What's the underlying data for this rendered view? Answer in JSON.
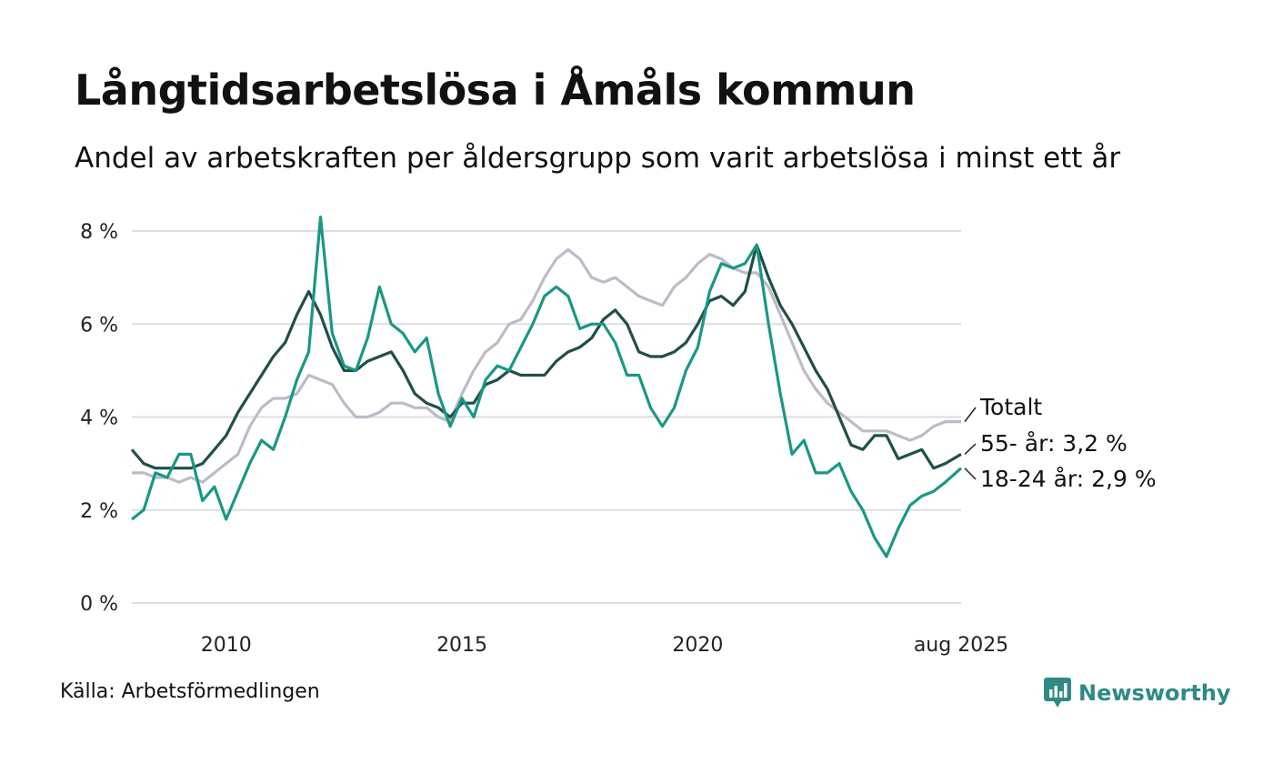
{
  "title": "Långtidsarbetslösa i Åmåls kommun",
  "subtitle": "Andel av arbetskraften per åldersgrupp som varit arbetslösa i minst ett år",
  "source": "Källa: Arbetsförmedlingen",
  "brand": {
    "name": "Newsworthy",
    "color": "#2d8a84",
    "icon": "newsworthy-logo-icon"
  },
  "chart_data": {
    "type": "line",
    "x_range": [
      "2008-01",
      "2025-08"
    ],
    "ylim": [
      0,
      8
    ],
    "y_ticks": [
      {
        "value": 0,
        "label": "0 %"
      },
      {
        "value": 2,
        "label": "2 %"
      },
      {
        "value": 4,
        "label": "4 %"
      },
      {
        "value": 6,
        "label": "6 %"
      },
      {
        "value": 8,
        "label": "8 %"
      }
    ],
    "x_ticks": [
      {
        "value": "2010-01",
        "label": "2010"
      },
      {
        "value": "2015-01",
        "label": "2015"
      },
      {
        "value": "2020-01",
        "label": "2020"
      },
      {
        "value": "2025-08",
        "label": "aug 2025"
      }
    ],
    "grid": "horizontal",
    "series": [
      {
        "name": "Totalt",
        "end_label": "Totalt",
        "color": "#bdbbc8",
        "points": [
          [
            "2008-01",
            2.8
          ],
          [
            "2008-04",
            2.8
          ],
          [
            "2008-07",
            2.7
          ],
          [
            "2008-10",
            2.7
          ],
          [
            "2009-01",
            2.6
          ],
          [
            "2009-04",
            2.7
          ],
          [
            "2009-07",
            2.6
          ],
          [
            "2009-10",
            2.8
          ],
          [
            "2010-01",
            3.0
          ],
          [
            "2010-04",
            3.2
          ],
          [
            "2010-07",
            3.8
          ],
          [
            "2010-10",
            4.2
          ],
          [
            "2011-01",
            4.4
          ],
          [
            "2011-04",
            4.4
          ],
          [
            "2011-07",
            4.5
          ],
          [
            "2011-10",
            4.9
          ],
          [
            "2012-01",
            4.8
          ],
          [
            "2012-04",
            4.7
          ],
          [
            "2012-07",
            4.3
          ],
          [
            "2012-10",
            4.0
          ],
          [
            "2013-01",
            4.0
          ],
          [
            "2013-04",
            4.1
          ],
          [
            "2013-07",
            4.3
          ],
          [
            "2013-10",
            4.3
          ],
          [
            "2014-01",
            4.2
          ],
          [
            "2014-04",
            4.2
          ],
          [
            "2014-07",
            4.0
          ],
          [
            "2014-10",
            3.9
          ],
          [
            "2015-01",
            4.5
          ],
          [
            "2015-04",
            5.0
          ],
          [
            "2015-07",
            5.4
          ],
          [
            "2015-10",
            5.6
          ],
          [
            "2016-01",
            6.0
          ],
          [
            "2016-04",
            6.1
          ],
          [
            "2016-07",
            6.5
          ],
          [
            "2016-10",
            7.0
          ],
          [
            "2017-01",
            7.4
          ],
          [
            "2017-04",
            7.6
          ],
          [
            "2017-07",
            7.4
          ],
          [
            "2017-10",
            7.0
          ],
          [
            "2018-01",
            6.9
          ],
          [
            "2018-04",
            7.0
          ],
          [
            "2018-07",
            6.8
          ],
          [
            "2018-10",
            6.6
          ],
          [
            "2019-01",
            6.5
          ],
          [
            "2019-04",
            6.4
          ],
          [
            "2019-07",
            6.8
          ],
          [
            "2019-10",
            7.0
          ],
          [
            "2020-01",
            7.3
          ],
          [
            "2020-04",
            7.5
          ],
          [
            "2020-07",
            7.4
          ],
          [
            "2020-10",
            7.2
          ],
          [
            "2021-01",
            7.1
          ],
          [
            "2021-04",
            7.1
          ],
          [
            "2021-07",
            6.8
          ],
          [
            "2021-10",
            6.2
          ],
          [
            "2022-01",
            5.6
          ],
          [
            "2022-04",
            5.0
          ],
          [
            "2022-07",
            4.6
          ],
          [
            "2022-10",
            4.3
          ],
          [
            "2023-01",
            4.1
          ],
          [
            "2023-04",
            3.9
          ],
          [
            "2023-07",
            3.7
          ],
          [
            "2023-10",
            3.7
          ],
          [
            "2024-01",
            3.7
          ],
          [
            "2024-04",
            3.6
          ],
          [
            "2024-07",
            3.5
          ],
          [
            "2024-10",
            3.6
          ],
          [
            "2025-01",
            3.8
          ],
          [
            "2025-04",
            3.9
          ],
          [
            "2025-08",
            3.9
          ]
        ]
      },
      {
        "name": "55- år",
        "end_label": "55- år: 3,2 %",
        "color": "#1f4f49",
        "points": [
          [
            "2008-01",
            3.3
          ],
          [
            "2008-04",
            3.0
          ],
          [
            "2008-07",
            2.9
          ],
          [
            "2008-10",
            2.9
          ],
          [
            "2009-01",
            2.9
          ],
          [
            "2009-04",
            2.9
          ],
          [
            "2009-07",
            3.0
          ],
          [
            "2009-10",
            3.3
          ],
          [
            "2010-01",
            3.6
          ],
          [
            "2010-04",
            4.1
          ],
          [
            "2010-07",
            4.5
          ],
          [
            "2010-10",
            4.9
          ],
          [
            "2011-01",
            5.3
          ],
          [
            "2011-04",
            5.6
          ],
          [
            "2011-07",
            6.2
          ],
          [
            "2011-10",
            6.7
          ],
          [
            "2012-01",
            6.2
          ],
          [
            "2012-04",
            5.5
          ],
          [
            "2012-07",
            5.0
          ],
          [
            "2012-10",
            5.0
          ],
          [
            "2013-01",
            5.2
          ],
          [
            "2013-04",
            5.3
          ],
          [
            "2013-07",
            5.4
          ],
          [
            "2013-10",
            5.0
          ],
          [
            "2014-01",
            4.5
          ],
          [
            "2014-04",
            4.3
          ],
          [
            "2014-07",
            4.2
          ],
          [
            "2014-10",
            4.0
          ],
          [
            "2015-01",
            4.3
          ],
          [
            "2015-04",
            4.3
          ],
          [
            "2015-07",
            4.7
          ],
          [
            "2015-10",
            4.8
          ],
          [
            "2016-01",
            5.0
          ],
          [
            "2016-04",
            4.9
          ],
          [
            "2016-07",
            4.9
          ],
          [
            "2016-10",
            4.9
          ],
          [
            "2017-01",
            5.2
          ],
          [
            "2017-04",
            5.4
          ],
          [
            "2017-07",
            5.5
          ],
          [
            "2017-10",
            5.7
          ],
          [
            "2018-01",
            6.1
          ],
          [
            "2018-04",
            6.3
          ],
          [
            "2018-07",
            6.0
          ],
          [
            "2018-10",
            5.4
          ],
          [
            "2019-01",
            5.3
          ],
          [
            "2019-04",
            5.3
          ],
          [
            "2019-07",
            5.4
          ],
          [
            "2019-10",
            5.6
          ],
          [
            "2020-01",
            6.0
          ],
          [
            "2020-04",
            6.5
          ],
          [
            "2020-07",
            6.6
          ],
          [
            "2020-10",
            6.4
          ],
          [
            "2021-01",
            6.7
          ],
          [
            "2021-04",
            7.7
          ],
          [
            "2021-07",
            7.0
          ],
          [
            "2021-10",
            6.4
          ],
          [
            "2022-01",
            6.0
          ],
          [
            "2022-04",
            5.5
          ],
          [
            "2022-07",
            5.0
          ],
          [
            "2022-10",
            4.6
          ],
          [
            "2023-01",
            4.0
          ],
          [
            "2023-04",
            3.4
          ],
          [
            "2023-07",
            3.3
          ],
          [
            "2023-10",
            3.6
          ],
          [
            "2024-01",
            3.6
          ],
          [
            "2024-04",
            3.1
          ],
          [
            "2024-07",
            3.2
          ],
          [
            "2024-10",
            3.3
          ],
          [
            "2025-01",
            2.9
          ],
          [
            "2025-04",
            3.0
          ],
          [
            "2025-08",
            3.2
          ]
        ]
      },
      {
        "name": "18-24 år",
        "end_label": "18-24 år: 2,9 %",
        "color": "#1a9784",
        "points": [
          [
            "2008-01",
            1.8
          ],
          [
            "2008-04",
            2.0
          ],
          [
            "2008-07",
            2.8
          ],
          [
            "2008-10",
            2.7
          ],
          [
            "2009-01",
            3.2
          ],
          [
            "2009-04",
            3.2
          ],
          [
            "2009-07",
            2.2
          ],
          [
            "2009-10",
            2.5
          ],
          [
            "2010-01",
            1.8
          ],
          [
            "2010-04",
            2.4
          ],
          [
            "2010-07",
            3.0
          ],
          [
            "2010-10",
            3.5
          ],
          [
            "2011-01",
            3.3
          ],
          [
            "2011-04",
            4.0
          ],
          [
            "2011-07",
            4.8
          ],
          [
            "2011-10",
            5.4
          ],
          [
            "2012-01",
            8.3
          ],
          [
            "2012-04",
            5.8
          ],
          [
            "2012-07",
            5.1
          ],
          [
            "2012-10",
            5.0
          ],
          [
            "2013-01",
            5.7
          ],
          [
            "2013-04",
            6.8
          ],
          [
            "2013-07",
            6.0
          ],
          [
            "2013-10",
            5.8
          ],
          [
            "2014-01",
            5.4
          ],
          [
            "2014-04",
            5.7
          ],
          [
            "2014-07",
            4.5
          ],
          [
            "2014-10",
            3.8
          ],
          [
            "2015-01",
            4.4
          ],
          [
            "2015-04",
            4.0
          ],
          [
            "2015-07",
            4.8
          ],
          [
            "2015-10",
            5.1
          ],
          [
            "2016-01",
            5.0
          ],
          [
            "2016-04",
            5.5
          ],
          [
            "2016-07",
            6.0
          ],
          [
            "2016-10",
            6.6
          ],
          [
            "2017-01",
            6.8
          ],
          [
            "2017-04",
            6.6
          ],
          [
            "2017-07",
            5.9
          ],
          [
            "2017-10",
            6.0
          ],
          [
            "2018-01",
            6.0
          ],
          [
            "2018-04",
            5.6
          ],
          [
            "2018-07",
            4.9
          ],
          [
            "2018-10",
            4.9
          ],
          [
            "2019-01",
            4.2
          ],
          [
            "2019-04",
            3.8
          ],
          [
            "2019-07",
            4.2
          ],
          [
            "2019-10",
            5.0
          ],
          [
            "2020-01",
            5.5
          ],
          [
            "2020-04",
            6.7
          ],
          [
            "2020-07",
            7.3
          ],
          [
            "2020-10",
            7.2
          ],
          [
            "2021-01",
            7.3
          ],
          [
            "2021-04",
            7.7
          ],
          [
            "2021-07",
            6.0
          ],
          [
            "2021-10",
            4.5
          ],
          [
            "2022-01",
            3.2
          ],
          [
            "2022-04",
            3.5
          ],
          [
            "2022-07",
            2.8
          ],
          [
            "2022-10",
            2.8
          ],
          [
            "2023-01",
            3.0
          ],
          [
            "2023-04",
            2.4
          ],
          [
            "2023-07",
            2.0
          ],
          [
            "2023-10",
            1.4
          ],
          [
            "2024-01",
            1.0
          ],
          [
            "2024-04",
            1.6
          ],
          [
            "2024-07",
            2.1
          ],
          [
            "2024-10",
            2.3
          ],
          [
            "2025-01",
            2.4
          ],
          [
            "2025-04",
            2.6
          ],
          [
            "2025-08",
            2.9
          ]
        ]
      }
    ]
  }
}
